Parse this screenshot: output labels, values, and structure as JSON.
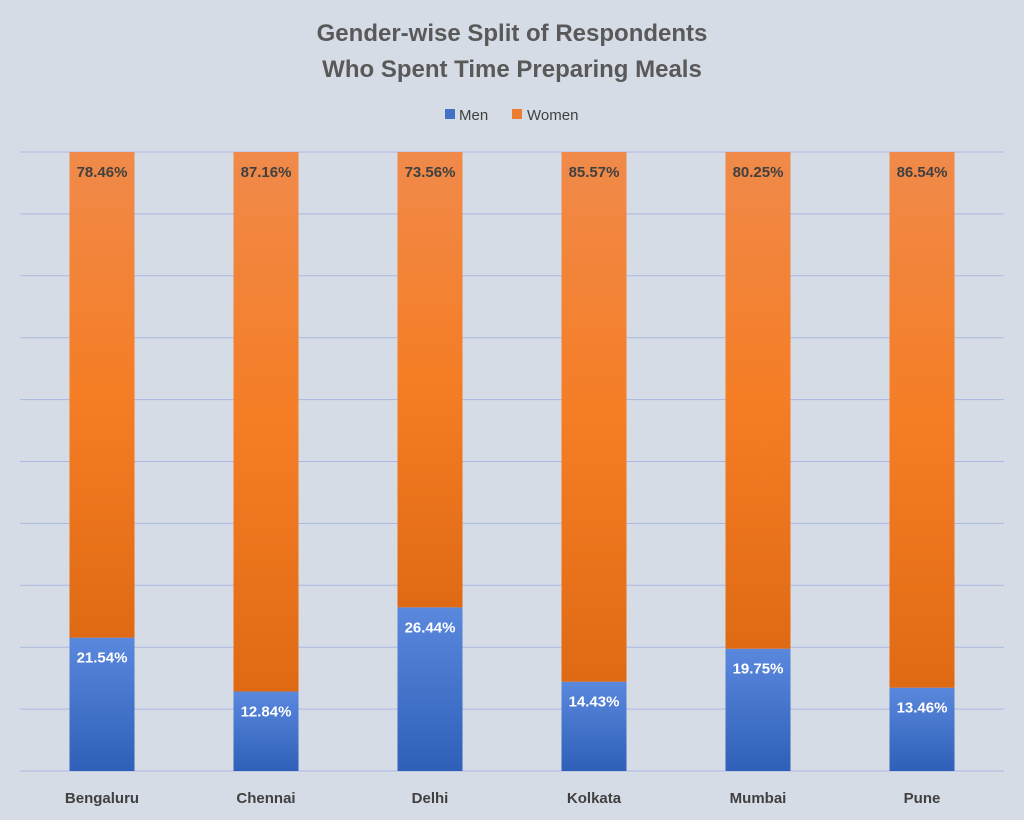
{
  "chart_data": {
    "type": "bar",
    "stacked": "percent",
    "title_lines": [
      "Gender-wise Split of Respondents",
      "Who Spent Time Preparing Meals"
    ],
    "categories": [
      "Bengaluru",
      "Chennai",
      "Delhi",
      "Kolkata",
      "Mumbai",
      "Pune"
    ],
    "series": [
      {
        "name": "Men",
        "values": [
          21.54,
          12.84,
          26.44,
          14.43,
          19.75,
          13.46
        ],
        "labels": [
          "21.54%",
          "12.84%",
          "26.44%",
          "14.43%",
          "19.75%",
          "13.46%"
        ],
        "color": "#4472c4"
      },
      {
        "name": "Women",
        "values": [
          78.46,
          87.16,
          73.56,
          85.57,
          80.25,
          86.54
        ],
        "labels": [
          "78.46%",
          "87.16%",
          "73.56%",
          "85.57%",
          "80.25%",
          "86.54%"
        ],
        "color": "#ed7d31"
      }
    ],
    "ylim": [
      0,
      100
    ],
    "grid": true,
    "legend_position": "top"
  },
  "colors": {
    "background": "#d6dce5",
    "gridline": "#a9b8e0"
  }
}
